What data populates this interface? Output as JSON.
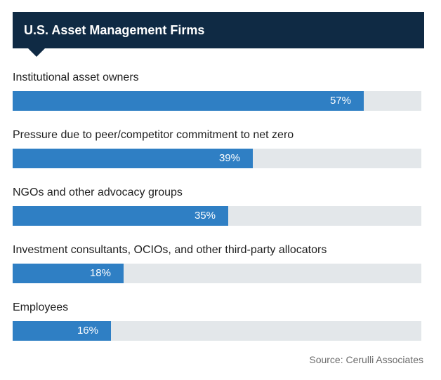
{
  "chart_data": {
    "type": "bar",
    "title": "U.S. Asset Management Firms",
    "categories": [
      "Institutional asset owners",
      "Pressure due to peer/competitor commitment to net zero",
      "NGOs and other advocacy groups",
      "Investment consultants, OCIOs, and other third-party allocators",
      "Employees"
    ],
    "values": [
      57,
      39,
      35,
      18,
      16
    ],
    "value_labels": [
      "57%",
      "39%",
      "35%",
      "18%",
      "16%"
    ],
    "xlim": [
      0,
      66.3
    ],
    "orientation": "horizontal",
    "grid": false,
    "source": "Source: Cerulli Associates",
    "colors": {
      "bar": "#2f7fc4",
      "track": "#e3e7ea",
      "header": "#0f2a44"
    }
  }
}
